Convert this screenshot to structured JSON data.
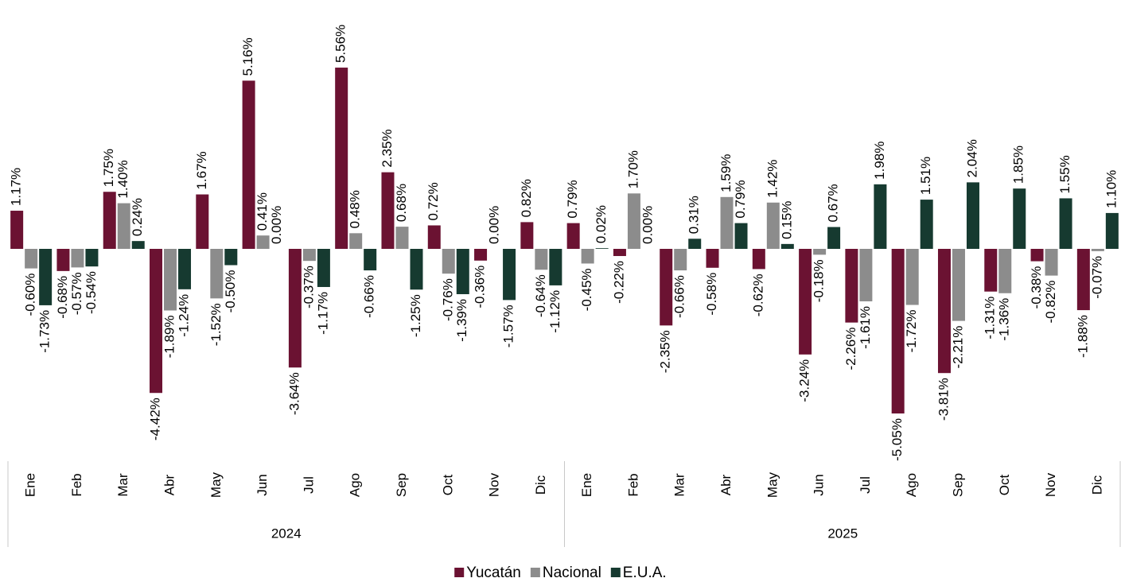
{
  "chart_data": {
    "type": "bar",
    "categories": [
      "Ene",
      "Feb",
      "Mar",
      "Abr",
      "May",
      "Jun",
      "Jul",
      "Ago",
      "Sep",
      "Oct",
      "Nov",
      "Dic",
      "Ene",
      "Feb",
      "Mar",
      "Abr",
      "May",
      "Jun",
      "Jul",
      "Ago",
      "Sep",
      "Oct",
      "Nov",
      "Dic"
    ],
    "groups": [
      "2024",
      "2025"
    ],
    "series": [
      {
        "name": "Yucatán",
        "color": "#6b1232",
        "values": [
          1.17,
          -0.68,
          1.75,
          -4.42,
          1.67,
          5.16,
          -3.64,
          5.56,
          2.35,
          0.72,
          -0.36,
          0.82,
          0.79,
          -0.22,
          -2.35,
          -0.58,
          -0.62,
          -3.24,
          -2.26,
          -5.05,
          -3.81,
          -1.31,
          -0.38,
          -1.88
        ],
        "value_labels": [
          "1.17%",
          "-0.68%",
          "1.75%",
          "-4.42%",
          "1.67%",
          "5.16%",
          "-3.64%",
          "5.56%",
          "2.35%",
          "0.72%",
          "-0.36%",
          "0.82%",
          "0.79%",
          "-0.22%",
          "-2.35%",
          "-0.58%",
          "-0.62%",
          "-3.24%",
          "-2.26%",
          "-5.05%",
          "-3.81%",
          "-1.31%",
          "-0.38%",
          "-1.88%"
        ]
      },
      {
        "name": "Nacional",
        "color": "#8c8c8c",
        "values": [
          -0.6,
          -0.57,
          1.4,
          -1.89,
          -1.52,
          0.41,
          -0.37,
          0.48,
          0.68,
          -0.76,
          0.0,
          -0.64,
          -0.45,
          1.7,
          -0.66,
          1.59,
          1.42,
          -0.18,
          -1.61,
          -1.72,
          -2.21,
          -1.36,
          -0.82,
          -0.07
        ],
        "value_labels": [
          "-0.60%",
          "-0.57%",
          "1.40%",
          "-1.89%",
          "-1.52%",
          "0.41%",
          "-0.37%",
          "0.48%",
          "0.68%",
          "-0.76%",
          "0.00%",
          "-0.64%",
          "-0.45%",
          "1.70%",
          "-0.66%",
          "1.59%",
          "1.42%",
          "-0.18%",
          "-1.61%",
          "-1.72%",
          "-2.21%",
          "-1.36%",
          "-0.82%",
          "-0.07%"
        ]
      },
      {
        "name": "E.U.A.",
        "color": "#163a30",
        "values": [
          -1.73,
          -0.54,
          0.24,
          -1.24,
          -0.5,
          0.0,
          -1.17,
          -0.66,
          -1.25,
          -1.39,
          -1.57,
          -1.12,
          0.02,
          0.0,
          0.31,
          0.79,
          0.15,
          0.67,
          1.98,
          1.51,
          2.04,
          1.85,
          1.55,
          1.1
        ],
        "value_labels": [
          "-1.73%",
          "-0.54%",
          "0.24%",
          "-1.24%",
          "-0.50%",
          "0.00%",
          "-1.17%",
          "-0.66%",
          "-1.25%",
          "-1.39%",
          "-1.57%",
          "-1.12%",
          "0.02%",
          "0.00%",
          "0.31%",
          "0.79%",
          "0.15%",
          "0.67%",
          "1.98%",
          "1.51%",
          "2.04%",
          "1.85%",
          "1.55%",
          "1.10%"
        ]
      }
    ]
  }
}
